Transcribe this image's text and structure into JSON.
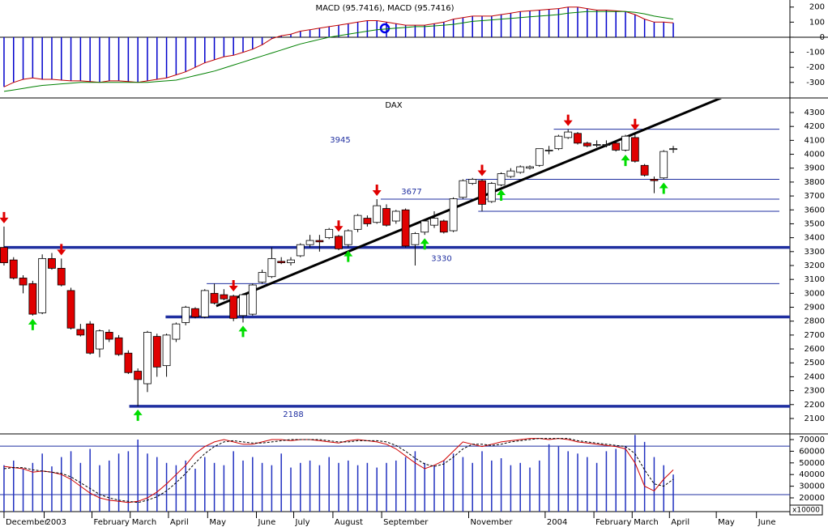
{
  "chart_data": [
    {
      "type": "macd",
      "title": "MACD (95.7416), MACD (95.7416)",
      "ylim": [
        -398,
        247
      ],
      "yticks": [
        200,
        100,
        0,
        -100,
        -200,
        -300
      ],
      "bar_color": "#0000cc",
      "series": [
        {
          "color": "#c00000",
          "values": [
            -330,
            -300,
            -280,
            -270,
            -280,
            -280,
            -285,
            -290,
            -290,
            -295,
            -300,
            -290,
            -290,
            -295,
            -300,
            -290,
            -280,
            -270,
            -250,
            -230,
            -200,
            -170,
            -150,
            -130,
            -120,
            -100,
            -80,
            -50,
            -10,
            10,
            20,
            40,
            50,
            60,
            70,
            80,
            90,
            100,
            110,
            110,
            100,
            90,
            80,
            80,
            80,
            90,
            100,
            120,
            130,
            140,
            140,
            140,
            150,
            160,
            170,
            175,
            180,
            185,
            190,
            200,
            200,
            190,
            180,
            180,
            175,
            170,
            150,
            120,
            100,
            100,
            95
          ]
        },
        {
          "color": "#008000",
          "values": [
            -360,
            -350,
            -340,
            -330,
            -320,
            -315,
            -310,
            -305,
            -300,
            -300,
            -300,
            -300,
            -300,
            -300,
            -300,
            -300,
            -295,
            -290,
            -285,
            -270,
            -255,
            -240,
            -225,
            -205,
            -185,
            -165,
            -145,
            -125,
            -105,
            -85,
            -65,
            -45,
            -30,
            -15,
            0,
            10,
            20,
            30,
            40,
            50,
            55,
            60,
            65,
            70,
            70,
            75,
            80,
            85,
            95,
            105,
            110,
            115,
            120,
            125,
            130,
            135,
            140,
            145,
            150,
            160,
            165,
            170,
            170,
            170,
            170,
            170,
            165,
            155,
            140,
            130,
            120
          ]
        }
      ]
    },
    {
      "type": "candlestick",
      "title": "DAX",
      "ylim": [
        1995,
        4399
      ],
      "yticks": [
        2100,
        2200,
        2300,
        2400,
        2500,
        2600,
        2700,
        2800,
        2900,
        3000,
        3100,
        3200,
        3300,
        3400,
        3500,
        3600,
        3700,
        3800,
        3900,
        4000,
        4100,
        4200,
        4300
      ],
      "up_color": "#ffffff",
      "down_color": "#e00000",
      "open": [
        3330,
        3240,
        3110,
        3070,
        2860,
        3250,
        3180,
        3020,
        2740,
        2780,
        2600,
        2720,
        2680,
        2570,
        2440,
        2350,
        2690,
        2480,
        2670,
        2790,
        2890,
        2830,
        3000,
        2990,
        2980,
        2840,
        2850,
        3080,
        3120,
        3230,
        3220,
        3270,
        3350,
        3380,
        3400,
        3410,
        3350,
        3460,
        3540,
        3510,
        3610,
        3520,
        3600,
        3350,
        3440,
        3490,
        3520,
        3450,
        3690,
        3790,
        3810,
        3660,
        3780,
        3840,
        3870,
        3900,
        3920,
        4030,
        4040,
        4120,
        4150,
        4080,
        4070,
        4070,
        4080,
        4030,
        4120,
        3920,
        3820,
        3830,
        4040
      ],
      "high": [
        3480,
        3260,
        3130,
        3090,
        3280,
        3290,
        3250,
        3040,
        2780,
        2800,
        2740,
        2740,
        2700,
        2590,
        2460,
        2730,
        2710,
        2710,
        2790,
        2910,
        2900,
        3030,
        3070,
        3030,
        2990,
        3000,
        3070,
        3170,
        3330,
        3260,
        3260,
        3360,
        3420,
        3420,
        3470,
        3420,
        3460,
        3570,
        3560,
        3677,
        3640,
        3600,
        3610,
        3440,
        3530,
        3590,
        3530,
        3690,
        3820,
        3830,
        3820,
        3800,
        3870,
        3900,
        3920,
        3920,
        4040,
        4060,
        4140,
        4180,
        4160,
        4090,
        4100,
        4100,
        4100,
        4140,
        4150,
        3930,
        3840,
        4030,
        4060
      ],
      "low": [
        3200,
        3100,
        3000,
        2840,
        2850,
        3170,
        3050,
        2740,
        2690,
        2560,
        2540,
        2650,
        2550,
        2420,
        2188,
        2290,
        2400,
        2400,
        2650,
        2770,
        2820,
        2820,
        2920,
        2950,
        2800,
        2790,
        2840,
        3070,
        3110,
        3210,
        3200,
        3260,
        3330,
        3300,
        3390,
        3310,
        3330,
        3440,
        3480,
        3500,
        3480,
        3500,
        3330,
        3200,
        3420,
        3470,
        3430,
        3440,
        3680,
        3780,
        3590,
        3650,
        3770,
        3830,
        3860,
        3890,
        3910,
        4000,
        4030,
        4110,
        4070,
        4050,
        4050,
        4050,
        4020,
        4020,
        3940,
        3840,
        3720,
        3820,
        4010
      ],
      "close": [
        3220,
        3110,
        3060,
        2850,
        3250,
        3180,
        3060,
        2750,
        2700,
        2570,
        2730,
        2670,
        2560,
        2430,
        2380,
        2720,
        2470,
        2700,
        2780,
        2900,
        2830,
        3020,
        2930,
        2960,
        2820,
        2990,
        3060,
        3150,
        3250,
        3220,
        3240,
        3350,
        3380,
        3370,
        3460,
        3320,
        3450,
        3560,
        3500,
        3630,
        3490,
        3590,
        3340,
        3430,
        3520,
        3540,
        3440,
        3680,
        3810,
        3820,
        3640,
        3790,
        3860,
        3880,
        3910,
        3910,
        4040,
        4030,
        4130,
        4160,
        4080,
        4060,
        4070,
        4070,
        4030,
        4130,
        3950,
        3850,
        3810,
        4020,
        4040
      ],
      "sell_signals": [
        0,
        6,
        24,
        35,
        39,
        50,
        59,
        66
      ],
      "buy_signals": [
        3,
        14,
        25,
        36,
        44,
        52,
        65,
        69
      ],
      "sell_color": "#e00000",
      "buy_color": "#00dd00",
      "level_color": "#1f2fa0",
      "levels": [
        {
          "value": 3330,
          "from": 0,
          "style": "thick"
        },
        {
          "value": 2188,
          "from": 13.1,
          "style": "thick"
        },
        {
          "value": 2830,
          "from": 16.9,
          "style": "thick"
        },
        {
          "value": 3070,
          "from": 21.2,
          "style": "thin"
        },
        {
          "value": 3590,
          "from": 49.6,
          "style": "thin"
        },
        {
          "value": 3677,
          "from": 39.4,
          "style": "thin"
        },
        {
          "value": 3820,
          "from": 48.3,
          "style": "thin"
        },
        {
          "value": 4180,
          "from": 57.5,
          "style": "thin"
        }
      ],
      "annotation": 3945,
      "trendline": {
        "x": [
          22.2,
          75
        ],
        "y": [
          2909,
          4405
        ],
        "color": "#000000"
      }
    },
    {
      "type": "oscillator",
      "ylim": [
        8194,
        75556
      ],
      "yticks": [
        70000,
        60000,
        50000,
        40000,
        30000,
        20000
      ],
      "unit_label": "x10000",
      "xlim": [
        -0.42,
        82.2
      ],
      "xticks": [
        {
          "value": 0,
          "label": "December"
        },
        {
          "value": 4.2,
          "label": "2003"
        },
        {
          "value": 9.2,
          "label": "February"
        },
        {
          "value": 13.2,
          "label": "March"
        },
        {
          "value": 17.2,
          "label": "April"
        },
        {
          "value": 21.3,
          "label": "May"
        },
        {
          "value": 26.4,
          "label": "June"
        },
        {
          "value": 30.3,
          "label": "July"
        },
        {
          "value": 34.4,
          "label": "August"
        },
        {
          "value": 39.5,
          "label": "September"
        },
        {
          "value": 48.6,
          "label": "November"
        },
        {
          "value": 56.6,
          "label": "2004"
        },
        {
          "value": 61.7,
          "label": "February"
        },
        {
          "value": 65.7,
          "label": "March"
        },
        {
          "value": 69.6,
          "label": "April"
        },
        {
          "value": 74.5,
          "label": "May"
        },
        {
          "value": 78.7,
          "label": "June"
        }
      ],
      "bands": [
        64400,
        22800
      ],
      "volume": {
        "color": "#2030c0",
        "values": [
          48000,
          52000,
          45000,
          50000,
          58000,
          47000,
          55000,
          60000,
          50000,
          62000,
          48000,
          52000,
          58000,
          60000,
          70000,
          58000,
          55000,
          50000,
          48000,
          52000,
          45000,
          55000,
          50000,
          48000,
          60000,
          52000,
          55000,
          50000,
          48000,
          58000,
          46000,
          50000,
          52000,
          48000,
          55000,
          50000,
          52000,
          48000,
          50000,
          46000,
          50000,
          52000,
          55000,
          60000,
          50000,
          48000,
          52000,
          58000,
          55000,
          50000,
          60000,
          52000,
          54000,
          48000,
          50000,
          46000,
          52000,
          66000,
          64000,
          60000,
          58000,
          55000,
          50000,
          60000,
          62000,
          64000,
          74000,
          68000,
          55000,
          48000,
          40000
        ]
      },
      "series": [
        {
          "color": "#d00000",
          "dashed": false,
          "values": [
            47000,
            46000,
            45000,
            42000,
            43000,
            42000,
            40000,
            36000,
            30000,
            24000,
            20000,
            18000,
            17000,
            16000,
            17000,
            20000,
            25000,
            32000,
            40000,
            48000,
            58000,
            64000,
            68000,
            70000,
            68000,
            66000,
            66000,
            68000,
            70000,
            70000,
            69000,
            70000,
            70000,
            69000,
            68000,
            67000,
            69000,
            70000,
            69000,
            68000,
            66000,
            62000,
            56000,
            50000,
            45000,
            48000,
            52000,
            60000,
            68000,
            66000,
            64000,
            66000,
            68000,
            69000,
            70000,
            71000,
            71000,
            70000,
            71000,
            70000,
            68000,
            67000,
            66000,
            65000,
            64000,
            62000,
            50000,
            30000,
            26000,
            36000,
            44000
          ]
        },
        {
          "color": "#000000",
          "dashed": true,
          "values": [
            45000,
            46000,
            46000,
            44000,
            43000,
            42000,
            41000,
            38000,
            33000,
            28000,
            23000,
            20000,
            18000,
            17000,
            16000,
            18000,
            21000,
            26000,
            33000,
            41000,
            50000,
            58000,
            64000,
            68000,
            69000,
            68000,
            67000,
            67000,
            68000,
            69000,
            70000,
            70000,
            70000,
            70000,
            69000,
            68000,
            68000,
            69000,
            69000,
            69000,
            68000,
            65000,
            60000,
            54000,
            49000,
            47000,
            49000,
            55000,
            62000,
            66000,
            66000,
            65000,
            66000,
            68000,
            69000,
            70000,
            71000,
            71000,
            71000,
            71000,
            69000,
            68000,
            67000,
            66000,
            65000,
            64000,
            58000,
            44000,
            32000,
            30000,
            36000
          ]
        }
      ]
    }
  ]
}
